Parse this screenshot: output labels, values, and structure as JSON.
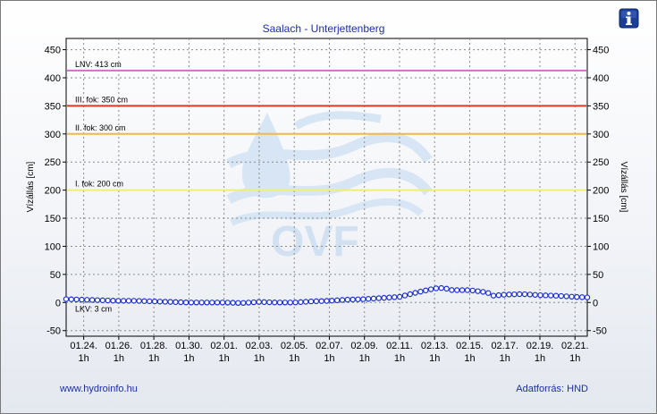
{
  "chart_data": {
    "type": "line",
    "title": "Saalach - Unterjettenberg",
    "ylabel_left": "Vízállás [cm]",
    "ylabel_right": "Vízállás [cm]",
    "ylim": [
      -60,
      470
    ],
    "yticks": [
      -50,
      0,
      50,
      100,
      150,
      200,
      250,
      300,
      350,
      400,
      450
    ],
    "grid": true,
    "xlim": [
      0,
      29.7
    ],
    "xticks": [
      {
        "x": 1,
        "date": "01.24.",
        "hour": "1h"
      },
      {
        "x": 3,
        "date": "01.26.",
        "hour": "1h"
      },
      {
        "x": 5,
        "date": "01.28.",
        "hour": "1h"
      },
      {
        "x": 7,
        "date": "01.30.",
        "hour": "1h"
      },
      {
        "x": 9,
        "date": "02.01.",
        "hour": "1h"
      },
      {
        "x": 11,
        "date": "02.03.",
        "hour": "1h"
      },
      {
        "x": 13,
        "date": "02.05.",
        "hour": "1h"
      },
      {
        "x": 15,
        "date": "02.07.",
        "hour": "1h"
      },
      {
        "x": 17,
        "date": "02.09.",
        "hour": "1h"
      },
      {
        "x": 19,
        "date": "02.11.",
        "hour": "1h"
      },
      {
        "x": 21,
        "date": "02.13.",
        "hour": "1h"
      },
      {
        "x": 23,
        "date": "02.15.",
        "hour": "1h"
      },
      {
        "x": 25,
        "date": "02.17.",
        "hour": "1h"
      },
      {
        "x": 27,
        "date": "02.19.",
        "hour": "1h"
      },
      {
        "x": 29,
        "date": "02.21.",
        "hour": "1h"
      }
    ],
    "reference_lines": [
      {
        "label": "LNV: 413 cm",
        "value": 413,
        "color": "#d66bd6"
      },
      {
        "label": "III. fok: 350 cm",
        "value": 350,
        "color": "#e03a20"
      },
      {
        "label": "II. fok: 300 cm",
        "value": 300,
        "color": "#f0b84a"
      },
      {
        "label": "I. fok: 200 cm",
        "value": 200,
        "color": "#f0f070"
      },
      {
        "label": "LKV: 3 cm",
        "value": 3,
        "color": "none"
      }
    ],
    "series": [
      {
        "color": "#1b2fd0",
        "x": [
          0,
          1,
          2,
          3,
          4,
          5,
          6,
          7,
          8,
          9,
          10,
          11,
          12,
          13,
          14,
          15,
          16,
          17,
          18,
          19,
          20,
          21,
          21.5,
          22,
          23,
          24,
          24.3,
          25,
          26,
          27,
          28,
          29,
          29.7
        ],
        "y": [
          6,
          5,
          4,
          3,
          3,
          2,
          1,
          0,
          0,
          0,
          -1,
          1,
          0,
          0,
          2,
          3,
          5,
          6,
          8,
          10,
          18,
          25,
          26,
          22,
          22,
          18,
          12,
          14,
          15,
          13,
          12,
          10,
          9
        ]
      }
    ]
  },
  "watermark": "OVF",
  "footer": {
    "left": "www.hydroinfo.hu",
    "right": "Adatforrás: HND"
  },
  "info_icon": "info-icon",
  "colors": {
    "title": "#1a2fa6",
    "series": "#1b2fd0",
    "grid": "#8a8a8a",
    "info_button": "#1c3f95"
  }
}
